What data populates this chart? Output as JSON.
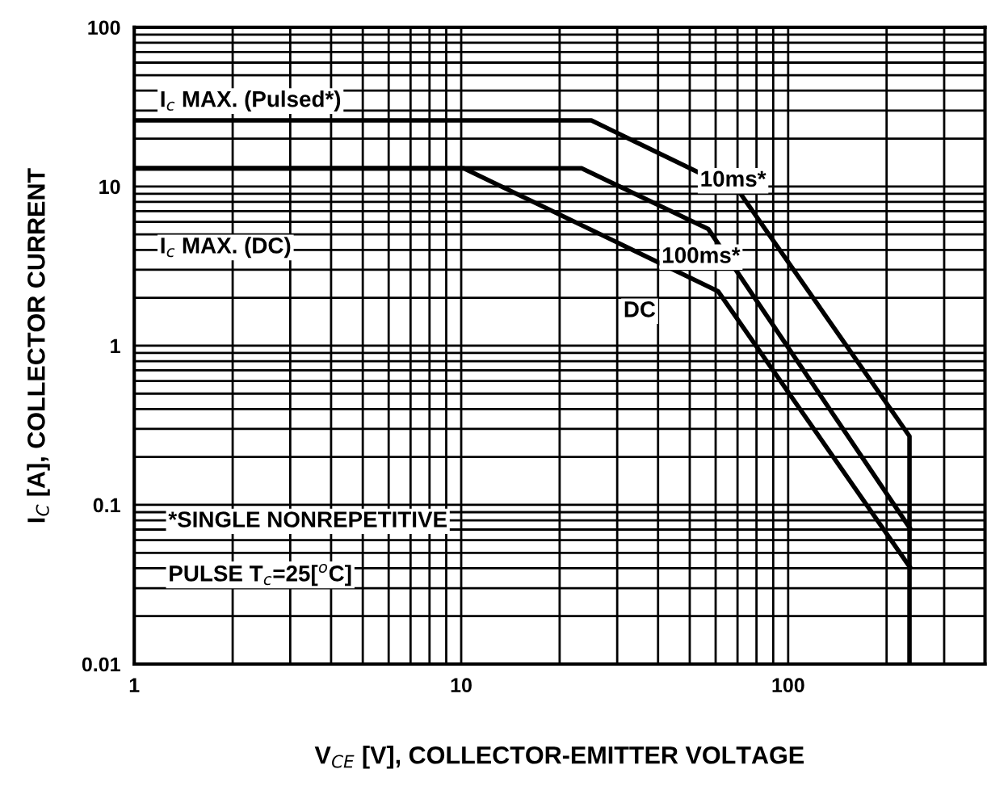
{
  "chart_data": {
    "type": "line",
    "xlabel": "V$_{CE}$ [V], COLLECTOR-EMITTER VOLTAGE",
    "ylabel": "I$_{C}$ [A], COLLECTOR CURRENT",
    "log": "xy",
    "grid": true,
    "legend": false,
    "marker": "none",
    "line_style": "solid",
    "xlim": [
      1,
      400
    ],
    "xticks": [
      1,
      10,
      100
    ],
    "ylim": [
      0.01,
      100
    ],
    "yticks": [
      0.01,
      0.1,
      1,
      10,
      100
    ],
    "series": [
      {
        "name": "10ms*",
        "color": "#000000",
        "x": [
          1,
          25,
          71,
          235,
          235
        ],
        "values": [
          26,
          26,
          9.2,
          0.27,
          0.01
        ]
      },
      {
        "name": "100ms*",
        "color": "#000000",
        "x": [
          1,
          23.4,
          57,
          235
        ],
        "values": [
          13,
          13,
          5.4,
          0.072
        ]
      },
      {
        "name": "DC",
        "color": "#000000",
        "x": [
          1,
          10.2,
          61,
          235
        ],
        "values": [
          13,
          13,
          2.2,
          0.041
        ]
      }
    ],
    "annotations": [
      "I$_{c}$ MAX. (Pulsed*)",
      "I$_{c}$ MAX. (DC)",
      "*SINGLE NONREPETITIVE",
      "PULSE T$_{c}$=25[$^{o}$C]"
    ]
  }
}
